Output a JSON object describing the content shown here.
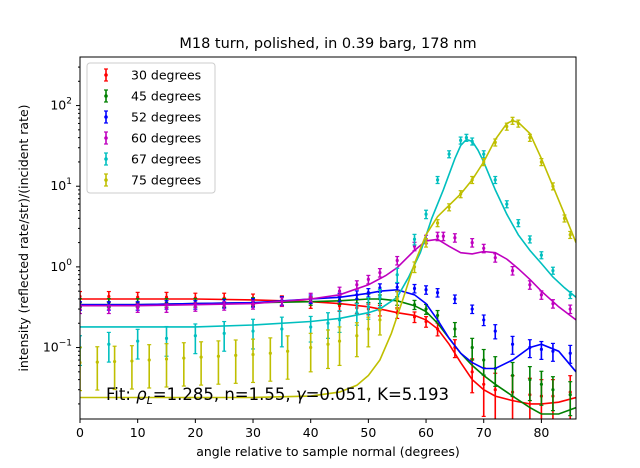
{
  "chart_data": {
    "type": "scatter",
    "title": "M18 turn, polished, in 0.39 barg, 178 nm",
    "xlabel": "angle relative to sample normal (degrees)",
    "ylabel": "intensity (reflected rate/str)/(incident rate)",
    "xlim": [
      0,
      86
    ],
    "ylim": [
      0.013,
      400
    ],
    "yscale": "log",
    "x_ticks": [
      0,
      10,
      20,
      30,
      40,
      50,
      60,
      70,
      80
    ],
    "y_ticks": [
      {
        "value": 0.1,
        "base": "10",
        "exp": "−1"
      },
      {
        "value": 1,
        "base": "10",
        "exp": "0"
      },
      {
        "value": 10,
        "base": "10",
        "exp": "1"
      },
      {
        "value": 100,
        "base": "10",
        "exp": "2"
      }
    ],
    "grid": false,
    "legend_position": "top-left",
    "annotation": {
      "prefix": "Fit: ",
      "rho": "ρ",
      "rho_sub": "L",
      "rest": "=1.285, n=1.55, ",
      "gamma": "γ",
      "rest2": "=0.051, K=5.193"
    },
    "series": [
      {
        "name": "30 degrees",
        "color": "#ff0000",
        "x": [
          0,
          5,
          10,
          15,
          20,
          25,
          30,
          35,
          40,
          45,
          48,
          50,
          52,
          55,
          58,
          60,
          62,
          65,
          68,
          70,
          72,
          75,
          78,
          80,
          82,
          85
        ],
        "y": [
          0.43,
          0.43,
          0.42,
          0.42,
          0.41,
          0.41,
          0.4,
          0.38,
          0.36,
          0.33,
          0.31,
          0.3,
          0.29,
          0.27,
          0.24,
          0.21,
          0.17,
          0.1,
          0.05,
          0.035,
          0.03,
          0.028,
          0.026,
          0.025,
          0.025,
          0.028
        ],
        "err": [
          0.15,
          0.15,
          0.15,
          0.15,
          0.15,
          0.15,
          0.15,
          0.15,
          0.15,
          0.15,
          0.15,
          0.15,
          0.15,
          0.15,
          0.15,
          0.15,
          0.18,
          0.25,
          0.45,
          0.6,
          0.6,
          0.6,
          0.6,
          0.6,
          0.6,
          0.6
        ],
        "fit_x": [
          0,
          10,
          20,
          30,
          40,
          45,
          50,
          53,
          55,
          58,
          60,
          62,
          64,
          66,
          68,
          70,
          72,
          75,
          78,
          80,
          83,
          86
        ],
        "fit_y": [
          0.4,
          0.4,
          0.4,
          0.39,
          0.37,
          0.35,
          0.32,
          0.29,
          0.27,
          0.25,
          0.22,
          0.17,
          0.11,
          0.065,
          0.04,
          0.03,
          0.025,
          0.022,
          0.02,
          0.02,
          0.021,
          0.024
        ]
      },
      {
        "name": "45 degrees",
        "color": "#008000",
        "x": [
          0,
          5,
          10,
          15,
          20,
          25,
          30,
          35,
          40,
          45,
          48,
          50,
          52,
          55,
          58,
          60,
          62,
          65,
          68,
          70,
          72,
          75,
          78,
          80,
          82,
          85
        ],
        "y": [
          0.36,
          0.36,
          0.36,
          0.36,
          0.36,
          0.36,
          0.37,
          0.38,
          0.38,
          0.39,
          0.4,
          0.41,
          0.4,
          0.38,
          0.34,
          0.3,
          0.25,
          0.17,
          0.1,
          0.07,
          0.055,
          0.045,
          0.04,
          0.035,
          0.03,
          0.026
        ],
        "err": [
          0.12,
          0.12,
          0.12,
          0.12,
          0.12,
          0.12,
          0.12,
          0.12,
          0.12,
          0.12,
          0.12,
          0.12,
          0.12,
          0.12,
          0.13,
          0.14,
          0.15,
          0.2,
          0.3,
          0.35,
          0.4,
          0.45,
          0.45,
          0.45,
          0.45,
          0.45
        ],
        "fit_x": [
          0,
          10,
          20,
          30,
          40,
          45,
          50,
          52,
          55,
          58,
          60,
          62,
          64,
          66,
          68,
          70,
          72,
          75,
          78,
          80,
          83,
          86
        ],
        "fit_y": [
          0.34,
          0.34,
          0.35,
          0.36,
          0.37,
          0.38,
          0.4,
          0.4,
          0.38,
          0.33,
          0.28,
          0.2,
          0.13,
          0.085,
          0.06,
          0.045,
          0.035,
          0.025,
          0.018,
          0.015,
          0.015,
          0.018
        ]
      },
      {
        "name": "52 degrees",
        "color": "#0000ff",
        "x": [
          0,
          5,
          10,
          15,
          20,
          25,
          30,
          35,
          40,
          45,
          48,
          50,
          52,
          55,
          58,
          60,
          62,
          65,
          68,
          70,
          72,
          75,
          78,
          80,
          82,
          85
        ],
        "y": [
          0.33,
          0.33,
          0.33,
          0.34,
          0.34,
          0.35,
          0.36,
          0.38,
          0.4,
          0.42,
          0.45,
          0.48,
          0.55,
          0.56,
          0.54,
          0.52,
          0.48,
          0.4,
          0.3,
          0.22,
          0.16,
          0.11,
          0.1,
          0.095,
          0.09,
          0.085
        ],
        "err": [
          0.12,
          0.12,
          0.12,
          0.12,
          0.12,
          0.12,
          0.12,
          0.12,
          0.12,
          0.12,
          0.12,
          0.12,
          0.12,
          0.12,
          0.12,
          0.12,
          0.12,
          0.12,
          0.12,
          0.15,
          0.2,
          0.25,
          0.25,
          0.25,
          0.25,
          0.25
        ],
        "fit_x": [
          0,
          10,
          20,
          30,
          40,
          45,
          50,
          52,
          55,
          58,
          60,
          62,
          64,
          66,
          68,
          70,
          72,
          75,
          78,
          80,
          83,
          86
        ],
        "fit_y": [
          0.34,
          0.34,
          0.35,
          0.36,
          0.4,
          0.42,
          0.47,
          0.5,
          0.52,
          0.45,
          0.35,
          0.22,
          0.13,
          0.085,
          0.065,
          0.055,
          0.055,
          0.07,
          0.1,
          0.11,
          0.09,
          0.05
        ]
      },
      {
        "name": "60 degrees",
        "color": "#bf00bf",
        "x": [
          0,
          5,
          10,
          15,
          20,
          25,
          30,
          35,
          40,
          45,
          48,
          50,
          52,
          55,
          58,
          60,
          62,
          63,
          65,
          68,
          70,
          72,
          75,
          78,
          80,
          82,
          85
        ],
        "y": [
          0.3,
          0.3,
          0.31,
          0.31,
          0.32,
          0.33,
          0.34,
          0.37,
          0.42,
          0.5,
          0.6,
          0.7,
          0.85,
          1.2,
          1.8,
          2.2,
          2.4,
          2.4,
          2.3,
          2.0,
          1.7,
          1.3,
          0.9,
          0.6,
          0.45,
          0.35,
          0.3
        ],
        "err": [
          0.12,
          0.12,
          0.12,
          0.12,
          0.12,
          0.12,
          0.12,
          0.12,
          0.12,
          0.12,
          0.12,
          0.12,
          0.12,
          0.12,
          0.12,
          0.12,
          0.12,
          0.12,
          0.12,
          0.12,
          0.12,
          0.12,
          0.12,
          0.12,
          0.12,
          0.12,
          0.12
        ],
        "fit_x": [
          0,
          10,
          20,
          30,
          40,
          45,
          50,
          53,
          55,
          58,
          60,
          62,
          64,
          66,
          68,
          70,
          72,
          74,
          76,
          78,
          80,
          83,
          86
        ],
        "fit_y": [
          0.33,
          0.33,
          0.34,
          0.35,
          0.4,
          0.45,
          0.6,
          0.78,
          0.98,
          1.6,
          2.1,
          2.2,
          1.8,
          1.5,
          1.45,
          1.55,
          1.5,
          1.25,
          0.95,
          0.7,
          0.5,
          0.32,
          0.22
        ]
      },
      {
        "name": "67 degrees",
        "color": "#00bfbf",
        "x": [
          0,
          5,
          10,
          15,
          20,
          25,
          30,
          35,
          40,
          43,
          45,
          48,
          50,
          52,
          55,
          58,
          60,
          62,
          64,
          66,
          67,
          68,
          70,
          72,
          74,
          76,
          78,
          80,
          82,
          85
        ],
        "y": [
          0.1,
          0.11,
          0.12,
          0.13,
          0.14,
          0.15,
          0.16,
          0.17,
          0.18,
          0.2,
          0.22,
          0.27,
          0.32,
          0.42,
          0.8,
          2.2,
          4.5,
          12,
          25,
          37,
          40,
          36,
          25,
          12,
          6,
          3.5,
          2.2,
          1.4,
          0.9,
          0.45
        ],
        "err": [
          0.4,
          0.4,
          0.4,
          0.4,
          0.4,
          0.4,
          0.4,
          0.4,
          0.35,
          0.35,
          0.3,
          0.3,
          0.3,
          0.25,
          0.2,
          0.15,
          0.12,
          0.1,
          0.1,
          0.1,
          0.1,
          0.1,
          0.1,
          0.1,
          0.1,
          0.1,
          0.1,
          0.1,
          0.1,
          0.1
        ],
        "fit_x": [
          0,
          10,
          20,
          30,
          40,
          45,
          50,
          52,
          55,
          57,
          59,
          61,
          63,
          65,
          66,
          67,
          68,
          69,
          70,
          72,
          74,
          76,
          78,
          80,
          82,
          84,
          86
        ],
        "fit_y": [
          0.18,
          0.18,
          0.18,
          0.19,
          0.21,
          0.23,
          0.27,
          0.3,
          0.42,
          0.75,
          1.5,
          4,
          9,
          22,
          32,
          38,
          36,
          28,
          20,
          9,
          4.5,
          2.5,
          1.6,
          1.1,
          0.75,
          0.55,
          0.42
        ]
      },
      {
        "name": "75 degrees",
        "color": "#bfbf00",
        "x": [
          0,
          3,
          6,
          9,
          12,
          15,
          18,
          21,
          24,
          27,
          30,
          33,
          36,
          40,
          43,
          45,
          48,
          50,
          52,
          55,
          58,
          60,
          62,
          64,
          66,
          68,
          70,
          72,
          74,
          75,
          76,
          78,
          80,
          82,
          84,
          85
        ],
        "y": [
          0.065,
          0.066,
          0.067,
          0.068,
          0.07,
          0.072,
          0.074,
          0.076,
          0.078,
          0.08,
          0.082,
          0.085,
          0.09,
          0.1,
          0.11,
          0.12,
          0.14,
          0.17,
          0.22,
          0.4,
          1.0,
          2.0,
          3.5,
          5.5,
          8,
          12,
          20,
          35,
          55,
          65,
          60,
          40,
          20,
          10,
          4,
          2.5
        ],
        "err": [
          0.55,
          0.55,
          0.55,
          0.55,
          0.55,
          0.55,
          0.55,
          0.55,
          0.55,
          0.55,
          0.55,
          0.55,
          0.55,
          0.5,
          0.5,
          0.5,
          0.45,
          0.4,
          0.35,
          0.25,
          0.15,
          0.12,
          0.1,
          0.1,
          0.1,
          0.1,
          0.1,
          0.1,
          0.1,
          0.1,
          0.1,
          0.1,
          0.1,
          0.1,
          0.1,
          0.1
        ],
        "fit_x": [
          0,
          10,
          20,
          30,
          40,
          45,
          48,
          50,
          52,
          54,
          56,
          58,
          60,
          62,
          64,
          66,
          68,
          70,
          72,
          74,
          75,
          76,
          78,
          80,
          82,
          84,
          86
        ],
        "fit_y": [
          0.024,
          0.024,
          0.024,
          0.024,
          0.025,
          0.028,
          0.034,
          0.045,
          0.07,
          0.15,
          0.4,
          1.1,
          2.5,
          4.2,
          5.8,
          8,
          12,
          20,
          38,
          60,
          65,
          62,
          45,
          22,
          10,
          4.5,
          2
        ]
      }
    ]
  }
}
